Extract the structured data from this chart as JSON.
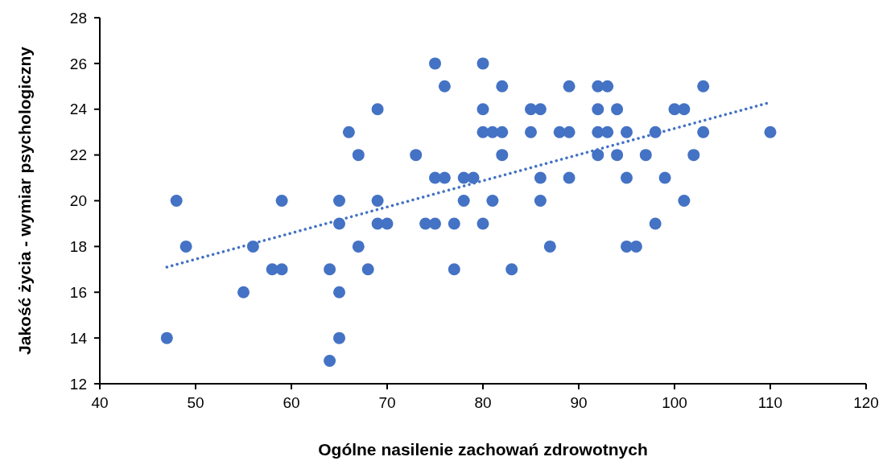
{
  "chart_data": {
    "type": "scatter",
    "xlabel": "Ogólne nasilenie zachowań zdrowotnych",
    "ylabel": "Jakość życia - wymiar psychologiczny",
    "xlim": [
      40,
      120
    ],
    "xticks": [
      40,
      50,
      60,
      70,
      80,
      90,
      100,
      110,
      120
    ],
    "ylim": [
      12,
      28
    ],
    "yticks": [
      12,
      14,
      16,
      18,
      20,
      22,
      24,
      26,
      28
    ],
    "grid": false,
    "series": [
      {
        "color": "#4472c4",
        "marker": "circle",
        "x": [
          47,
          48,
          49,
          55,
          56,
          58,
          59,
          59,
          64,
          64,
          65,
          65,
          65,
          65,
          66,
          67,
          67,
          68,
          69,
          69,
          69,
          70,
          73,
          74,
          75,
          75,
          75,
          76,
          76,
          77,
          77,
          78,
          78,
          79,
          80,
          80,
          80,
          80,
          81,
          81,
          82,
          82,
          82,
          83,
          85,
          85,
          86,
          86,
          86,
          87,
          88,
          89,
          89,
          89,
          92,
          92,
          92,
          92,
          93,
          93,
          94,
          94,
          95,
          95,
          95,
          96,
          97,
          98,
          98,
          99,
          100,
          101,
          101,
          102,
          103,
          103,
          110
        ],
        "values": [
          14,
          20,
          18,
          16,
          18,
          17,
          17,
          20,
          17,
          13,
          20,
          19,
          16,
          14,
          23,
          22,
          18,
          17,
          24,
          20,
          19,
          19,
          22,
          19,
          26,
          21,
          19,
          25,
          21,
          19,
          17,
          21,
          20,
          21,
          26,
          24,
          23,
          19,
          23,
          20,
          25,
          23,
          22,
          17,
          24,
          23,
          24,
          21,
          20,
          18,
          23,
          25,
          23,
          21,
          25,
          24,
          23,
          22,
          25,
          23,
          24,
          22,
          23,
          21,
          18,
          18,
          22,
          23,
          19,
          21,
          24,
          24,
          20,
          22,
          25,
          23,
          23
        ]
      },
      {
        "type": "line",
        "color": "#4472c4",
        "line_style": "dotted",
        "marker": "none",
        "x": [
          47,
          110
        ],
        "values": [
          17.1,
          24.3
        ]
      }
    ]
  }
}
